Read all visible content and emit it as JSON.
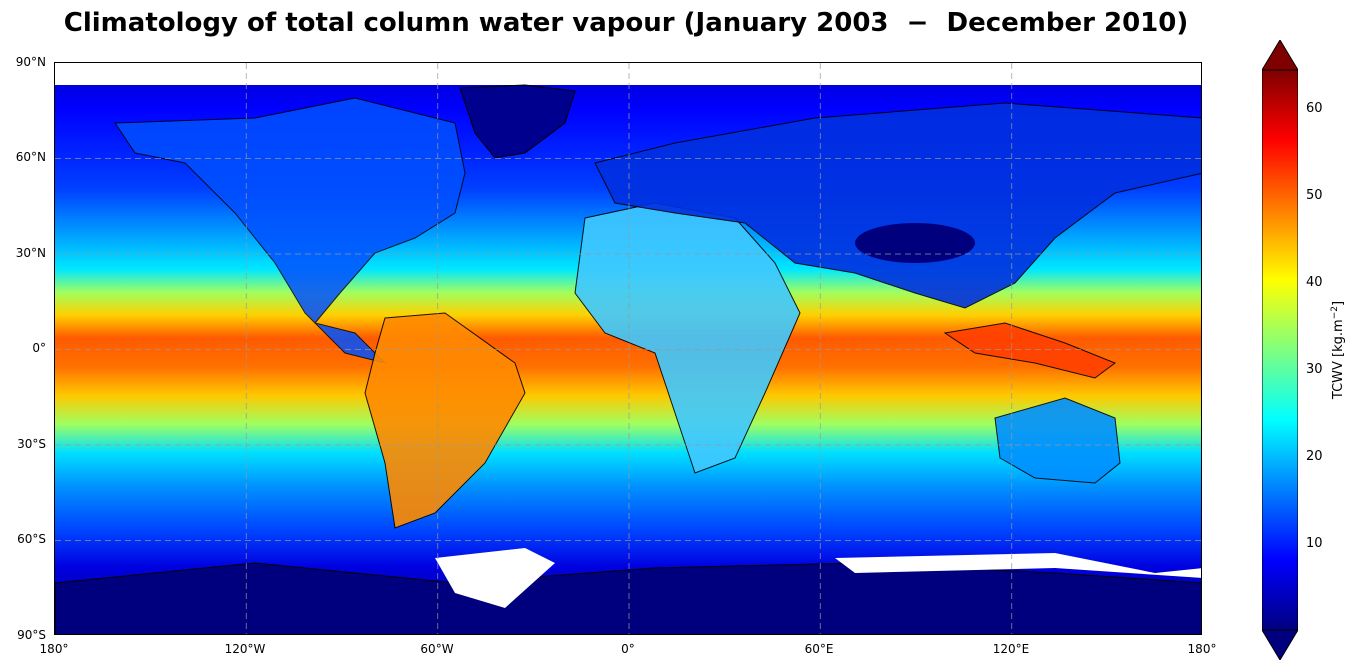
{
  "title": "Climatology of total column water vapour (January 2003  −  December 2010)",
  "map": {
    "projection": "PlateCarree",
    "lon_range": [
      -180,
      180
    ],
    "lat_range": [
      -90,
      90
    ],
    "gridlines": true,
    "coastlines": true,
    "colormap": "jet",
    "missing_data_color": "#ffffff"
  },
  "axes": {
    "lat_ticks": [
      "90°N",
      "60°N",
      "30°N",
      "0°",
      "30°S",
      "60°S",
      "90°S"
    ],
    "lon_ticks": [
      "180°",
      "120°W",
      "60°W",
      "0°",
      "60°E",
      "120°E",
      "180°"
    ]
  },
  "colorbar": {
    "label_text": "TCWV [kg.m",
    "label_sup": "−2",
    "label_end": "]",
    "min": 0,
    "max": 65,
    "extend": "both",
    "ticks": [
      "10",
      "20",
      "30",
      "40",
      "50",
      "60"
    ],
    "colors": [
      "#00007f",
      "#0000ff",
      "#007fff",
      "#00ffff",
      "#7fff7f",
      "#ffff00",
      "#ff7f00",
      "#ff0000",
      "#7f0000"
    ]
  }
}
